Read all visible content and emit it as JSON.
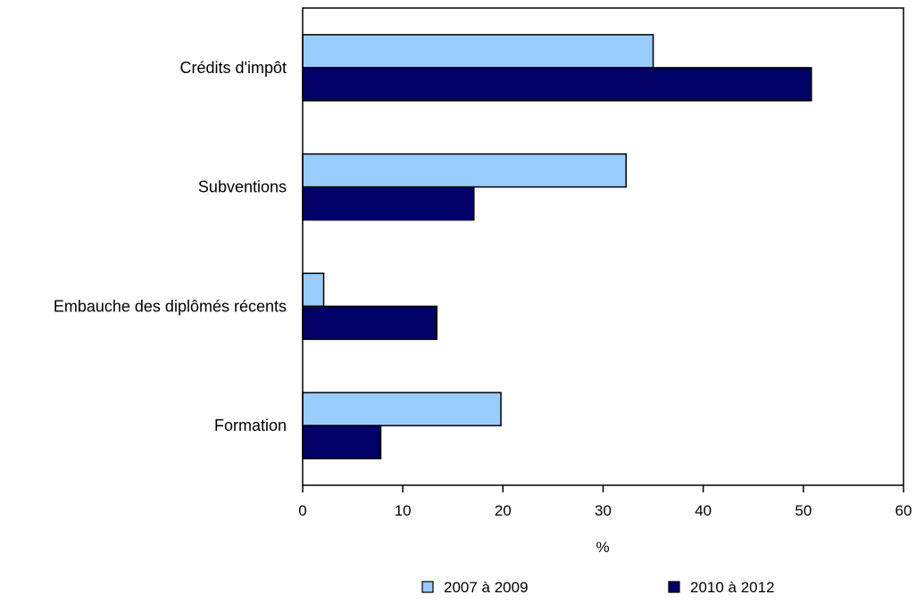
{
  "chart_data": {
    "type": "bar",
    "orientation": "horizontal",
    "categories": [
      "Crédits d'impôt",
      "Subventions",
      "Embauche des diplômés récents",
      "Formation"
    ],
    "series": [
      {
        "name": "2007 à 2009",
        "values": [
          35,
          32.3,
          2.1,
          19.8
        ],
        "color": "#99ccff"
      },
      {
        "name": "2010 à 2012",
        "values": [
          50.8,
          17.1,
          13.4,
          7.8
        ],
        "color": "#000066"
      }
    ],
    "xlabel": "%",
    "ylabel": "",
    "xlim": [
      0,
      60
    ],
    "xticks": [
      "0",
      "10",
      "20",
      "30",
      "40",
      "50",
      "60"
    ],
    "grid": false,
    "legend": "bottom"
  }
}
